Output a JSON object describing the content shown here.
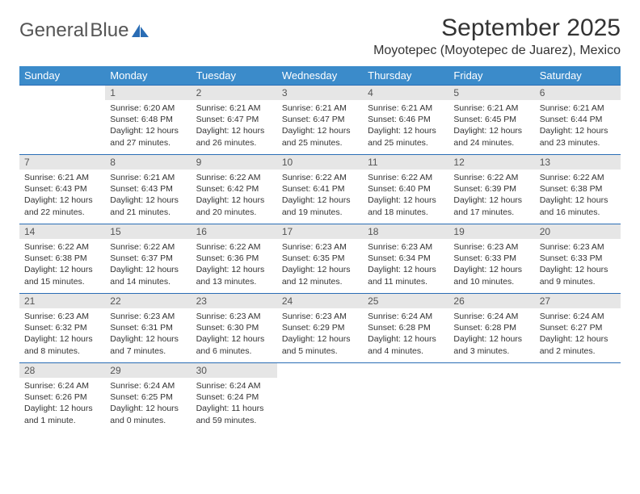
{
  "brand": {
    "word1": "General",
    "word2": "Blue"
  },
  "title": "September 2025",
  "location": "Moyotepec (Moyotepec de Juarez), Mexico",
  "colors": {
    "header_bg": "#3b8bca",
    "header_fg": "#ffffff",
    "cell_border": "#2a6db5",
    "daynum_bg": "#e6e6e6",
    "text": "#333333",
    "brand_gray": "#555555",
    "brand_blue": "#2a6db5",
    "page_bg": "#ffffff"
  },
  "weekdays": [
    "Sunday",
    "Monday",
    "Tuesday",
    "Wednesday",
    "Thursday",
    "Friday",
    "Saturday"
  ],
  "start_offset": 1,
  "days": [
    {
      "n": 1,
      "sr": "6:20 AM",
      "ss": "6:48 PM",
      "dl": "12 hours and 27 minutes."
    },
    {
      "n": 2,
      "sr": "6:21 AM",
      "ss": "6:47 PM",
      "dl": "12 hours and 26 minutes."
    },
    {
      "n": 3,
      "sr": "6:21 AM",
      "ss": "6:47 PM",
      "dl": "12 hours and 25 minutes."
    },
    {
      "n": 4,
      "sr": "6:21 AM",
      "ss": "6:46 PM",
      "dl": "12 hours and 25 minutes."
    },
    {
      "n": 5,
      "sr": "6:21 AM",
      "ss": "6:45 PM",
      "dl": "12 hours and 24 minutes."
    },
    {
      "n": 6,
      "sr": "6:21 AM",
      "ss": "6:44 PM",
      "dl": "12 hours and 23 minutes."
    },
    {
      "n": 7,
      "sr": "6:21 AM",
      "ss": "6:43 PM",
      "dl": "12 hours and 22 minutes."
    },
    {
      "n": 8,
      "sr": "6:21 AM",
      "ss": "6:43 PM",
      "dl": "12 hours and 21 minutes."
    },
    {
      "n": 9,
      "sr": "6:22 AM",
      "ss": "6:42 PM",
      "dl": "12 hours and 20 minutes."
    },
    {
      "n": 10,
      "sr": "6:22 AM",
      "ss": "6:41 PM",
      "dl": "12 hours and 19 minutes."
    },
    {
      "n": 11,
      "sr": "6:22 AM",
      "ss": "6:40 PM",
      "dl": "12 hours and 18 minutes."
    },
    {
      "n": 12,
      "sr": "6:22 AM",
      "ss": "6:39 PM",
      "dl": "12 hours and 17 minutes."
    },
    {
      "n": 13,
      "sr": "6:22 AM",
      "ss": "6:38 PM",
      "dl": "12 hours and 16 minutes."
    },
    {
      "n": 14,
      "sr": "6:22 AM",
      "ss": "6:38 PM",
      "dl": "12 hours and 15 minutes."
    },
    {
      "n": 15,
      "sr": "6:22 AM",
      "ss": "6:37 PM",
      "dl": "12 hours and 14 minutes."
    },
    {
      "n": 16,
      "sr": "6:22 AM",
      "ss": "6:36 PM",
      "dl": "12 hours and 13 minutes."
    },
    {
      "n": 17,
      "sr": "6:23 AM",
      "ss": "6:35 PM",
      "dl": "12 hours and 12 minutes."
    },
    {
      "n": 18,
      "sr": "6:23 AM",
      "ss": "6:34 PM",
      "dl": "12 hours and 11 minutes."
    },
    {
      "n": 19,
      "sr": "6:23 AM",
      "ss": "6:33 PM",
      "dl": "12 hours and 10 minutes."
    },
    {
      "n": 20,
      "sr": "6:23 AM",
      "ss": "6:33 PM",
      "dl": "12 hours and 9 minutes."
    },
    {
      "n": 21,
      "sr": "6:23 AM",
      "ss": "6:32 PM",
      "dl": "12 hours and 8 minutes."
    },
    {
      "n": 22,
      "sr": "6:23 AM",
      "ss": "6:31 PM",
      "dl": "12 hours and 7 minutes."
    },
    {
      "n": 23,
      "sr": "6:23 AM",
      "ss": "6:30 PM",
      "dl": "12 hours and 6 minutes."
    },
    {
      "n": 24,
      "sr": "6:23 AM",
      "ss": "6:29 PM",
      "dl": "12 hours and 5 minutes."
    },
    {
      "n": 25,
      "sr": "6:24 AM",
      "ss": "6:28 PM",
      "dl": "12 hours and 4 minutes."
    },
    {
      "n": 26,
      "sr": "6:24 AM",
      "ss": "6:28 PM",
      "dl": "12 hours and 3 minutes."
    },
    {
      "n": 27,
      "sr": "6:24 AM",
      "ss": "6:27 PM",
      "dl": "12 hours and 2 minutes."
    },
    {
      "n": 28,
      "sr": "6:24 AM",
      "ss": "6:26 PM",
      "dl": "12 hours and 1 minute."
    },
    {
      "n": 29,
      "sr": "6:24 AM",
      "ss": "6:25 PM",
      "dl": "12 hours and 0 minutes."
    },
    {
      "n": 30,
      "sr": "6:24 AM",
      "ss": "6:24 PM",
      "dl": "11 hours and 59 minutes."
    }
  ],
  "labels": {
    "sunrise": "Sunrise:",
    "sunset": "Sunset:",
    "daylight": "Daylight:"
  }
}
